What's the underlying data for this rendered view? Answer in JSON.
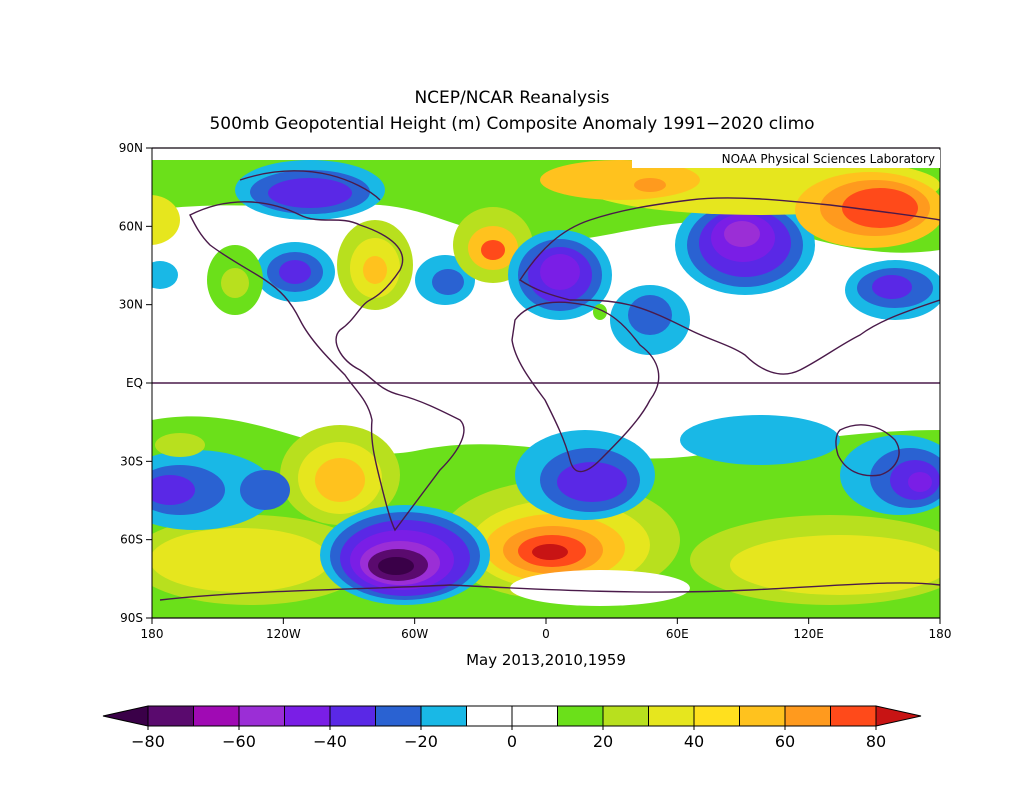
{
  "title": "NCEP/NCAR Reanalysis",
  "subtitle": "500mb Geopotential Height (m) Composite Anomaly 1991−2020 climo",
  "credit": "NOAA Physical Sciences Laboratory",
  "period_label": "May 2013,2010,1959",
  "lat_ticks": [
    {
      "label": "90N",
      "lat": 90
    },
    {
      "label": "60N",
      "lat": 60
    },
    {
      "label": "30N",
      "lat": 30
    },
    {
      "label": "EQ",
      "lat": 0
    },
    {
      "label": "30S",
      "lat": -30
    },
    {
      "label": "60S",
      "lat": -60
    },
    {
      "label": "90S",
      "lat": -90
    }
  ],
  "lon_ticks": [
    {
      "label": "180",
      "lon": -180
    },
    {
      "label": "120W",
      "lon": -120
    },
    {
      "label": "60W",
      "lon": -60
    },
    {
      "label": "0",
      "lon": 0
    },
    {
      "label": "60E",
      "lon": 60
    },
    {
      "label": "120E",
      "lon": 120
    },
    {
      "label": "180",
      "lon": 180
    }
  ],
  "colorbar": {
    "colors": [
      "#5a0a6e",
      "#a00ab4",
      "#9b2ed6",
      "#7a1ee6",
      "#5a28e6",
      "#2a62d2",
      "#19b8e6",
      "#ffffff",
      "#ffffff",
      "#6be01a",
      "#b8e01e",
      "#e6e61e",
      "#ffe01e",
      "#ffc21e",
      "#ff9a1e",
      "#ff4a1a"
    ],
    "low_color": "#3a0048",
    "high_color": "#c81414",
    "tick_labels": [
      {
        "label": "−80",
        "index": 0
      },
      {
        "label": "−60",
        "index": 2
      },
      {
        "label": "−40",
        "index": 4
      },
      {
        "label": "−20",
        "index": 6
      },
      {
        "label": "0",
        "index": 8
      },
      {
        "label": "20",
        "index": 10
      },
      {
        "label": "40",
        "index": 12
      },
      {
        "label": "60",
        "index": 14
      },
      {
        "label": "80",
        "index": 16
      }
    ]
  }
}
